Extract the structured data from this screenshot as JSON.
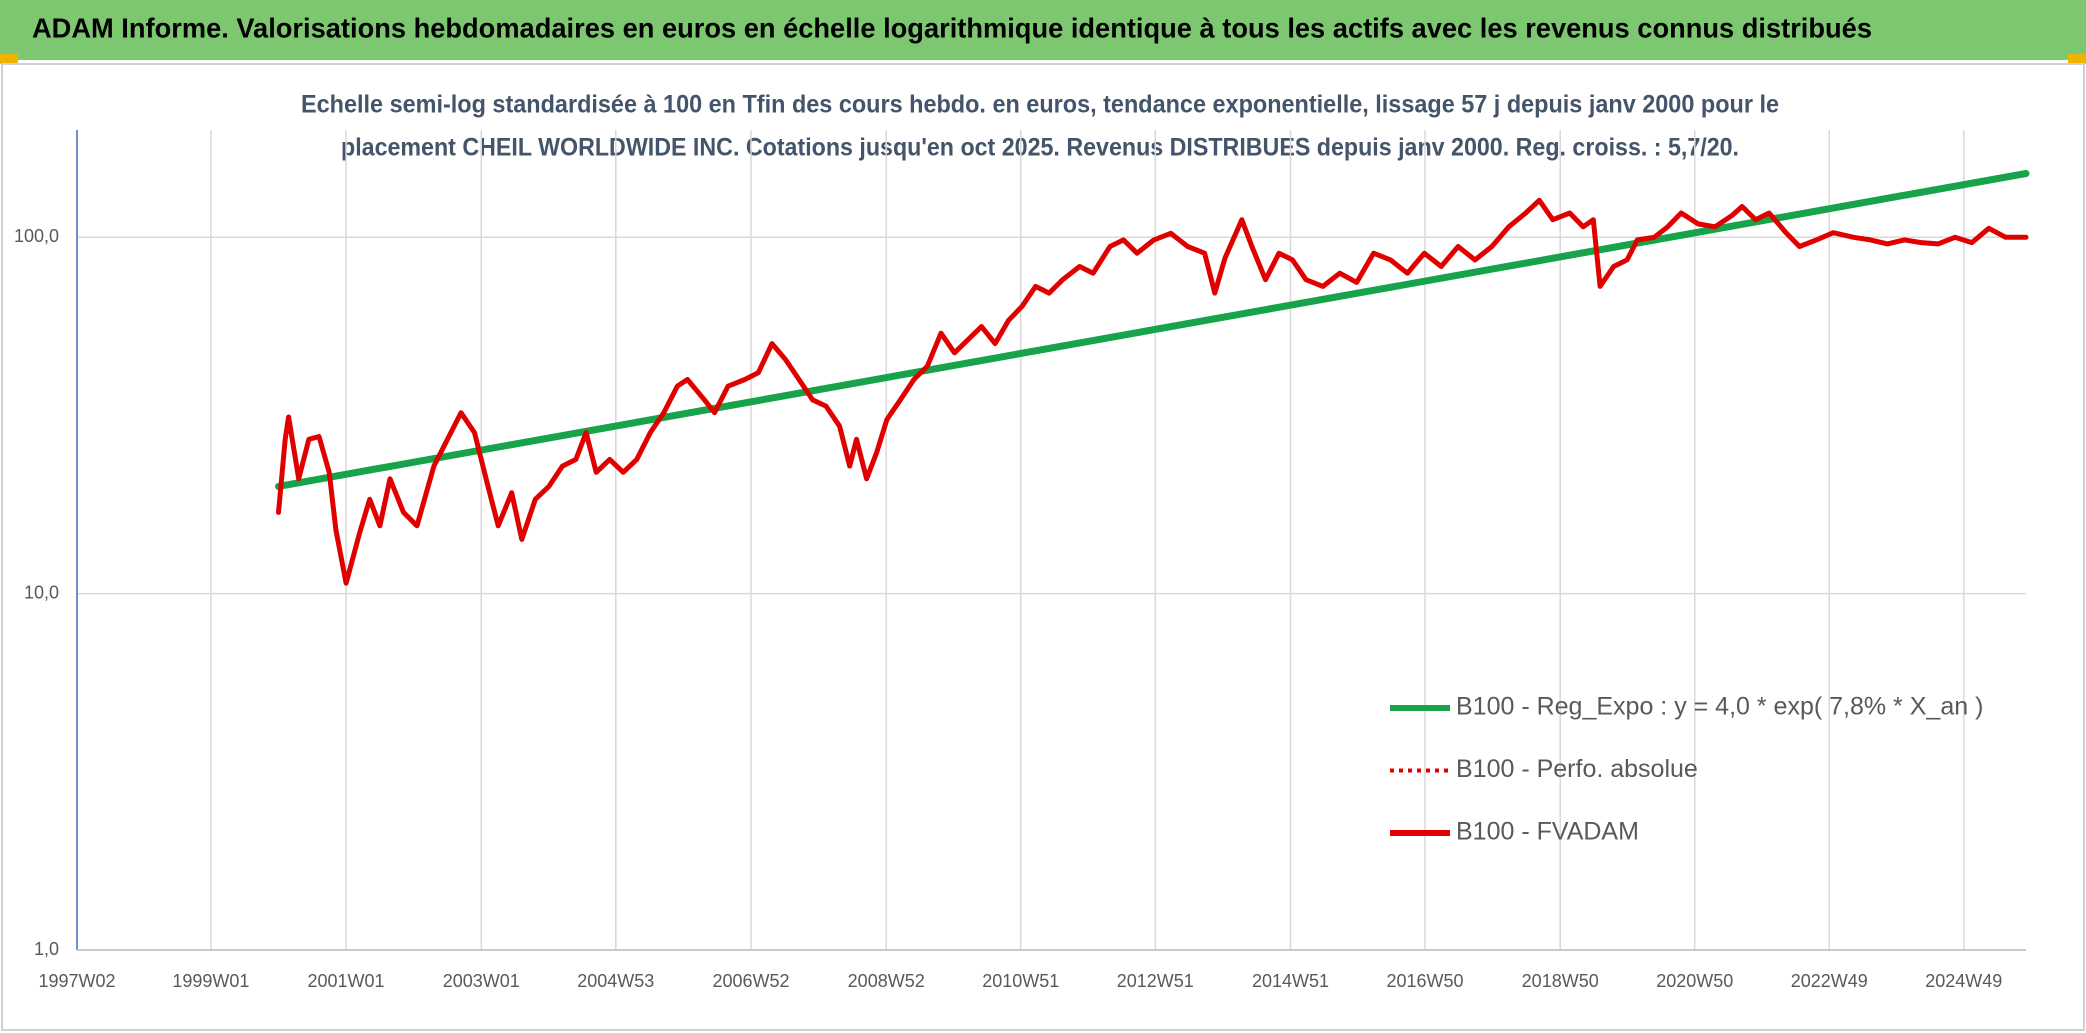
{
  "chart_data": {
    "type": "line",
    "title": "ADAM Informe. Valorisations hebdomadaires en euros en échelle logarithmique identique à tous les actifs avec les revenus connus distribués",
    "subtitle": [
      "Echelle semi-log standardisée à 100 en Tfin des cours hebdo. en euros, tendance exponentielle, lissage 57 j depuis janv 2000 pour le",
      "placement CHEIL WORLDWIDE INC. Cotations jusqu'en oct 2025. Revenus DISTRIBUES depuis janv 2000. Reg. croiss. : 5,7/20."
    ],
    "log_scale": true,
    "grid": true,
    "legend": "right",
    "ylim": [
      1,
      200
    ],
    "yticks": [
      {
        "value": 1,
        "label": "1,0"
      },
      {
        "value": 10,
        "label": "10,0"
      },
      {
        "value": 100,
        "label": "100,0"
      }
    ],
    "xlim": [
      1997.02,
      2025.85
    ],
    "xticks": [
      {
        "value": 1997.02,
        "label": "1997W02"
      },
      {
        "value": 1999.0,
        "label": "1999W01"
      },
      {
        "value": 2001.0,
        "label": "2001W01"
      },
      {
        "value": 2003.0,
        "label": "2003W01"
      },
      {
        "value": 2004.99,
        "label": "2004W53"
      },
      {
        "value": 2006.99,
        "label": "2006W52"
      },
      {
        "value": 2008.99,
        "label": "2008W52"
      },
      {
        "value": 2010.98,
        "label": "2010W51"
      },
      {
        "value": 2012.97,
        "label": "2012W51"
      },
      {
        "value": 2014.97,
        "label": "2014W51"
      },
      {
        "value": 2016.96,
        "label": "2016W50"
      },
      {
        "value": 2018.96,
        "label": "2018W50"
      },
      {
        "value": 2020.95,
        "label": "2020W50"
      },
      {
        "value": 2022.94,
        "label": "2022W49"
      },
      {
        "value": 2024.93,
        "label": "2024W49"
      }
    ],
    "series": [
      {
        "name": "B100 - Reg_Expo : y = 4,0 * exp( 7,8% *  X_an )",
        "color": "#16a34a",
        "style": "solid",
        "x": [
          2000.0,
          2025.85
        ],
        "values": [
          20.0,
          151
        ]
      },
      {
        "name": "B100 - Perfo. absolue",
        "color": "#e00000",
        "style": "dotted",
        "x": [],
        "values": []
      },
      {
        "name": "B100 - FVADAM",
        "color": "#e00000",
        "style": "solid",
        "x": [
          2000.0,
          2000.1,
          2000.15,
          2000.3,
          2000.45,
          2000.6,
          2000.75,
          2000.85,
          2001.0,
          2001.2,
          2001.35,
          2001.5,
          2001.65,
          2001.85,
          2002.05,
          2002.3,
          2002.5,
          2002.7,
          2002.9,
          2003.1,
          2003.25,
          2003.45,
          2003.6,
          2003.8,
          2004.0,
          2004.2,
          2004.4,
          2004.55,
          2004.7,
          2004.9,
          2005.1,
          2005.3,
          2005.5,
          2005.7,
          2005.9,
          2006.05,
          2006.3,
          2006.45,
          2006.65,
          2006.9,
          2007.1,
          2007.3,
          2007.5,
          2007.7,
          2007.9,
          2008.1,
          2008.3,
          2008.45,
          2008.55,
          2008.7,
          2008.85,
          2009.0,
          2009.2,
          2009.4,
          2009.6,
          2009.8,
          2010.0,
          2010.2,
          2010.4,
          2010.6,
          2010.8,
          2011.0,
          2011.2,
          2011.4,
          2011.6,
          2011.85,
          2012.05,
          2012.3,
          2012.5,
          2012.7,
          2012.95,
          2013.2,
          2013.45,
          2013.7,
          2013.85,
          2014.0,
          2014.25,
          2014.4,
          2014.6,
          2014.8,
          2015.0,
          2015.2,
          2015.45,
          2015.7,
          2015.95,
          2016.2,
          2016.45,
          2016.7,
          2016.95,
          2017.2,
          2017.45,
          2017.7,
          2017.95,
          2018.2,
          2018.45,
          2018.65,
          2018.85,
          2019.1,
          2019.3,
          2019.45,
          2019.55,
          2019.75,
          2019.95,
          2020.1,
          2020.35,
          2020.55,
          2020.75,
          2021.0,
          2021.25,
          2021.5,
          2021.65,
          2021.85,
          2022.05,
          2022.3,
          2022.5,
          2022.75,
          2023.0,
          2023.3,
          2023.55,
          2023.8,
          2024.05,
          2024.3,
          2024.55,
          2024.8,
          2025.05,
          2025.3,
          2025.55,
          2025.85
        ],
        "values": [
          16.9,
          27.1,
          31.3,
          21.0,
          27.1,
          27.6,
          21.9,
          15.1,
          10.7,
          14.8,
          18.4,
          15.5,
          21.0,
          16.9,
          15.5,
          22.8,
          27.1,
          32.2,
          28.3,
          20.0,
          15.5,
          19.2,
          14.2,
          18.4,
          20.0,
          22.8,
          23.8,
          28.3,
          21.9,
          23.8,
          21.9,
          23.8,
          28.3,
          32.2,
          38.2,
          39.9,
          35.0,
          32.2,
          38.2,
          39.9,
          41.7,
          50.3,
          45.4,
          39.9,
          35.0,
          33.6,
          29.5,
          22.8,
          27.1,
          21.0,
          24.9,
          30.8,
          35.0,
          39.9,
          43.5,
          53.8,
          47.4,
          51.6,
          56.2,
          50.3,
          58.5,
          64.0,
          72.8,
          69.7,
          76.0,
          82.8,
          79.3,
          94.2,
          98.3,
          90.2,
          98.3,
          102.6,
          94.2,
          90.2,
          69.7,
          87.3,
          112,
          94.2,
          76.0,
          90.2,
          86.4,
          76.0,
          72.8,
          79.3,
          74.7,
          90.2,
          86.4,
          79.3,
          90.2,
          82.8,
          94.2,
          86.4,
          94.2,
          107,
          117,
          127,
          112,
          117,
          107,
          112,
          72.8,
          82.8,
          86.4,
          98.3,
          100,
          107,
          117,
          109,
          107,
          115,
          122,
          112,
          117,
          103,
          94.2,
          98.3,
          103,
          100,
          98.3,
          95.8,
          98.3,
          96.6,
          95.8,
          100,
          96.6,
          106,
          100,
          100
        ]
      }
    ]
  }
}
